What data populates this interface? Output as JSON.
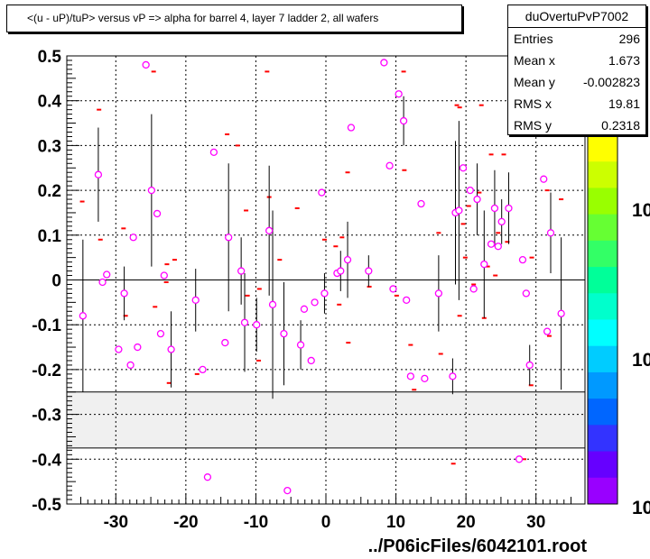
{
  "chart_data": {
    "type": "scatter",
    "title": "<(u - uP)/tuP> versus  vP => alpha for barrel 4, layer 7 ladder 2, all wafers",
    "xlim": [
      -37,
      37
    ],
    "ylim": [
      -0.5,
      0.5
    ],
    "x_ticks": [
      -30,
      -20,
      -10,
      0,
      10,
      20,
      30
    ],
    "y_ticks": [
      -0.5,
      -0.4,
      -0.3,
      -0.2,
      -0.1,
      0,
      0.1,
      0.2,
      0.3,
      0.4,
      0.5
    ],
    "grid": true,
    "excluded_band": [
      -0.375,
      -0.25
    ],
    "palette_labels": [
      "10",
      "10",
      "10"
    ],
    "points": [
      {
        "x": -34.7,
        "y": -0.08,
        "err": 0.17
      },
      {
        "x": -32.5,
        "y": 0.235,
        "err": 0.105
      },
      {
        "x": -31.9,
        "y": -0.005
      },
      {
        "x": -31.3,
        "y": 0.012
      },
      {
        "x": -29.6,
        "y": -0.155
      },
      {
        "x": -28.8,
        "y": -0.03,
        "err": 0.06
      },
      {
        "x": -27.9,
        "y": -0.19
      },
      {
        "x": -27.5,
        "y": 0.095
      },
      {
        "x": -26.9,
        "y": -0.15
      },
      {
        "x": -25.7,
        "y": 0.48
      },
      {
        "x": -24.9,
        "y": 0.2,
        "err": 0.17
      },
      {
        "x": -24.1,
        "y": 0.148
      },
      {
        "x": -23.6,
        "y": -0.12
      },
      {
        "x": -23.1,
        "y": 0.01
      },
      {
        "x": -22.1,
        "y": -0.155,
        "err": 0.085
      },
      {
        "x": -18.6,
        "y": -0.045,
        "err": 0.07
      },
      {
        "x": -17.6,
        "y": -0.2
      },
      {
        "x": -16.9,
        "y": -0.44
      },
      {
        "x": -16.0,
        "y": 0.285
      },
      {
        "x": -14.4,
        "y": -0.14
      },
      {
        "x": -13.9,
        "y": 0.095,
        "err": 0.165
      },
      {
        "x": -12.1,
        "y": 0.02,
        "err": 0.075
      },
      {
        "x": -11.6,
        "y": -0.095,
        "err": 0.11
      },
      {
        "x": -9.9,
        "y": -0.1,
        "err": 0.06
      },
      {
        "x": -8.1,
        "y": 0.11,
        "err": 0.145
      },
      {
        "x": -7.6,
        "y": -0.055,
        "err": 0.21
      },
      {
        "x": -6.0,
        "y": -0.12,
        "err": 0.115
      },
      {
        "x": -5.5,
        "y": -0.47
      },
      {
        "x": -3.6,
        "y": -0.145,
        "err": 0.055
      },
      {
        "x": -3.1,
        "y": -0.065
      },
      {
        "x": -2.1,
        "y": -0.18
      },
      {
        "x": -1.6,
        "y": -0.05
      },
      {
        "x": -0.6,
        "y": 0.195
      },
      {
        "x": -0.2,
        "y": -0.03,
        "err": 0.045
      },
      {
        "x": 1.6,
        "y": 0.015
      },
      {
        "x": 2.1,
        "y": 0.02,
        "err": 0.045
      },
      {
        "x": 3.1,
        "y": 0.045,
        "err": 0.085
      },
      {
        "x": 3.6,
        "y": 0.34
      },
      {
        "x": 6.1,
        "y": 0.02,
        "err": 0.035
      },
      {
        "x": 8.3,
        "y": 0.485
      },
      {
        "x": 9.1,
        "y": 0.255
      },
      {
        "x": 9.6,
        "y": -0.02
      },
      {
        "x": 10.4,
        "y": 0.415
      },
      {
        "x": 11.1,
        "y": 0.355,
        "err": 0.055
      },
      {
        "x": 11.5,
        "y": -0.045
      },
      {
        "x": 12.1,
        "y": -0.215
      },
      {
        "x": 13.6,
        "y": 0.17
      },
      {
        "x": 14.1,
        "y": -0.22
      },
      {
        "x": 16.1,
        "y": -0.03,
        "err": 0.085
      },
      {
        "x": 18.1,
        "y": -0.215,
        "err": 0.04
      },
      {
        "x": 18.5,
        "y": 0.15,
        "err": 0.16
      },
      {
        "x": 19.0,
        "y": 0.155,
        "err": 0.2
      },
      {
        "x": 19.6,
        "y": 0.25
      },
      {
        "x": 20.6,
        "y": 0.2
      },
      {
        "x": 21.1,
        "y": -0.02
      },
      {
        "x": 21.6,
        "y": 0.18,
        "err": 0.08
      },
      {
        "x": 22.6,
        "y": 0.035,
        "err": 0.12
      },
      {
        "x": 23.6,
        "y": 0.08
      },
      {
        "x": 24.1,
        "y": 0.16,
        "err": 0.085
      },
      {
        "x": 24.6,
        "y": 0.075
      },
      {
        "x": 25.1,
        "y": 0.13,
        "err": 0.05
      },
      {
        "x": 26.1,
        "y": 0.16,
        "err": 0.08
      },
      {
        "x": 27.6,
        "y": -0.4
      },
      {
        "x": 28.1,
        "y": 0.045
      },
      {
        "x": 28.6,
        "y": -0.03
      },
      {
        "x": 29.1,
        "y": -0.19,
        "err": 0.045
      },
      {
        "x": 31.1,
        "y": 0.225
      },
      {
        "x": 31.6,
        "y": -0.115
      },
      {
        "x": 32.1,
        "y": 0.105,
        "err": 0.09
      },
      {
        "x": 33.6,
        "y": -0.075,
        "err": 0.17
      }
    ],
    "markers": [
      {
        "x": -34.8,
        "y": 0.175
      },
      {
        "x": -32.4,
        "y": 0.38
      },
      {
        "x": -32.2,
        "y": 0.09
      },
      {
        "x": -28.9,
        "y": 0.115
      },
      {
        "x": -28.6,
        "y": -0.08
      },
      {
        "x": -24.6,
        "y": 0.465
      },
      {
        "x": -24.4,
        "y": -0.06
      },
      {
        "x": -22.8,
        "y": -0.005
      },
      {
        "x": -22.7,
        "y": 0.035
      },
      {
        "x": -22.4,
        "y": -0.23
      },
      {
        "x": -21.6,
        "y": 0.045
      },
      {
        "x": -18.4,
        "y": -0.21
      },
      {
        "x": -14.1,
        "y": 0.325
      },
      {
        "x": -12.6,
        "y": 0.3
      },
      {
        "x": -11.4,
        "y": 0.155
      },
      {
        "x": -11.2,
        "y": -0.035
      },
      {
        "x": -9.6,
        "y": -0.18
      },
      {
        "x": -9.5,
        "y": -0.02
      },
      {
        "x": -8.4,
        "y": 0.465
      },
      {
        "x": -8.1,
        "y": 0.185
      },
      {
        "x": -6.6,
        "y": 0.045
      },
      {
        "x": -4.1,
        "y": 0.16
      },
      {
        "x": -0.2,
        "y": 0.09
      },
      {
        "x": 1.4,
        "y": 0.075
      },
      {
        "x": 1.9,
        "y": -0.055
      },
      {
        "x": 2.3,
        "y": 0.095
      },
      {
        "x": 3.1,
        "y": 0.24
      },
      {
        "x": 3.2,
        "y": -0.14
      },
      {
        "x": 6.2,
        "y": -0.015
      },
      {
        "x": 10.1,
        "y": -0.035
      },
      {
        "x": 11.1,
        "y": 0.465
      },
      {
        "x": 11.2,
        "y": 0.245
      },
      {
        "x": 12.1,
        "y": -0.145
      },
      {
        "x": 12.6,
        "y": -0.245
      },
      {
        "x": 16.1,
        "y": 0.105
      },
      {
        "x": 16.4,
        "y": -0.165
      },
      {
        "x": 18.2,
        "y": -0.41
      },
      {
        "x": 18.7,
        "y": 0.39
      },
      {
        "x": 19.1,
        "y": 0.385
      },
      {
        "x": 19.1,
        "y": -0.08
      },
      {
        "x": 19.6,
        "y": 0.125
      },
      {
        "x": 19.9,
        "y": 0.05
      },
      {
        "x": 20.4,
        "y": 0.165
      },
      {
        "x": 21.1,
        "y": -0.01
      },
      {
        "x": 21.9,
        "y": 0.195
      },
      {
        "x": 22.2,
        "y": 0.39
      },
      {
        "x": 22.6,
        "y": -0.085
      },
      {
        "x": 23.1,
        "y": 0.03
      },
      {
        "x": 23.6,
        "y": 0.28
      },
      {
        "x": 24.2,
        "y": 0.01
      },
      {
        "x": 24.6,
        "y": 0.105
      },
      {
        "x": 25.4,
        "y": 0.28
      },
      {
        "x": 25.9,
        "y": 0.085
      },
      {
        "x": 28.3,
        "y": -0.4
      },
      {
        "x": 29.3,
        "y": -0.235
      },
      {
        "x": 29.4,
        "y": 0.05
      },
      {
        "x": 31.6,
        "y": 0.2
      },
      {
        "x": 31.9,
        "y": -0.125
      },
      {
        "x": 33.6,
        "y": 0.18
      }
    ]
  },
  "stats": {
    "title": "duOvertuPvP7002",
    "rows": [
      {
        "label": "Entries",
        "value": "296"
      },
      {
        "label": "Mean x",
        "value": "1.673"
      },
      {
        "label": "Mean y",
        "value": "-0.002823"
      },
      {
        "label": "RMS x",
        "value": "19.81"
      },
      {
        "label": "RMS y",
        "value": "0.2318"
      }
    ]
  },
  "footer": "../P06icFiles/6042101.root",
  "colors": {
    "marker": "#ff00ff",
    "hist_marker": "#ff0000",
    "excluded_band": "#f0f0f0",
    "palette": [
      "#ffff00",
      "#ccff00",
      "#99ff00",
      "#66ff33",
      "#33ff66",
      "#00ff99",
      "#00ffcc",
      "#00ffff",
      "#00ccff",
      "#0099ff",
      "#0066ff",
      "#3333ff",
      "#6600ff",
      "#9900ff"
    ]
  }
}
